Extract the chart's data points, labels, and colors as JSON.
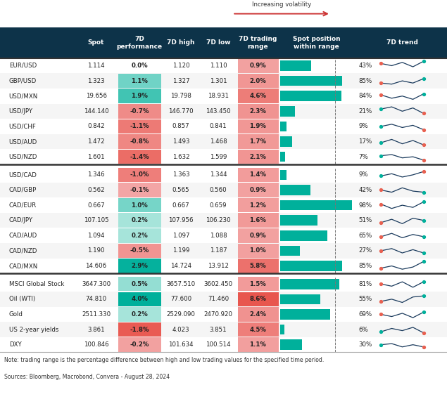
{
  "header_bg": "#0d3349",
  "rows": [
    [
      "EUR/USD",
      "1.114",
      "0.0%",
      "1.120",
      "1.110",
      "0.9%",
      43,
      [
        0.7,
        0.5,
        0.8,
        0.4,
        0.9
      ],
      "orange",
      "teal"
    ],
    [
      "GBP/USD",
      "1.323",
      "1.1%",
      "1.327",
      "1.301",
      "2.0%",
      85,
      [
        0.3,
        0.2,
        0.5,
        0.3,
        0.7
      ],
      "orange",
      "teal"
    ],
    [
      "USD/MXN",
      "19.656",
      "1.9%",
      "19.798",
      "18.931",
      "4.6%",
      84,
      [
        0.6,
        0.3,
        0.5,
        0.2,
        0.7
      ],
      "orange",
      "teal"
    ],
    [
      "USD/JPY",
      "144.140",
      "-0.7%",
      "146.770",
      "143.450",
      "2.3%",
      21,
      [
        0.7,
        0.9,
        0.5,
        0.8,
        0.3
      ],
      "teal",
      "orange"
    ],
    [
      "USD/CHF",
      "0.842",
      "-1.1%",
      "0.857",
      "0.841",
      "1.9%",
      9,
      [
        0.5,
        0.7,
        0.4,
        0.6,
        0.2
      ],
      "teal",
      "orange"
    ],
    [
      "USD/AUD",
      "1.472",
      "-0.8%",
      "1.493",
      "1.468",
      "1.7%",
      17,
      [
        0.4,
        0.7,
        0.3,
        0.6,
        0.2
      ],
      "teal",
      "orange"
    ],
    [
      "USD/NZD",
      "1.601",
      "-1.4%",
      "1.632",
      "1.599",
      "2.1%",
      7,
      [
        0.6,
        0.7,
        0.4,
        0.5,
        0.2
      ],
      "teal",
      "orange"
    ]
  ],
  "rows2": [
    [
      "USD/CAD",
      "1.346",
      "-1.0%",
      "1.363",
      "1.344",
      "1.4%",
      9,
      [
        0.4,
        0.6,
        0.3,
        0.5,
        0.8
      ],
      "teal",
      "orange"
    ],
    [
      "CAD/GBP",
      "0.562",
      "-0.1%",
      "0.565",
      "0.560",
      "0.9%",
      42,
      [
        0.5,
        0.3,
        0.7,
        0.4,
        0.3
      ],
      "orange",
      "teal"
    ],
    [
      "CAD/EUR",
      "0.667",
      "1.0%",
      "0.667",
      "0.659",
      "1.2%",
      98,
      [
        0.6,
        0.2,
        0.5,
        0.3,
        0.8
      ],
      "orange",
      "teal"
    ],
    [
      "CAD/JPY",
      "107.105",
      "0.2%",
      "107.956",
      "106.230",
      "1.6%",
      51,
      [
        0.3,
        0.6,
        0.2,
        0.7,
        0.5
      ],
      "orange",
      "teal"
    ],
    [
      "CAD/AUD",
      "1.094",
      "0.2%",
      "1.097",
      "1.088",
      "0.9%",
      65,
      [
        0.4,
        0.7,
        0.3,
        0.6,
        0.4
      ],
      "orange",
      "teal"
    ],
    [
      "CAD/NZD",
      "1.190",
      "-0.5%",
      "1.199",
      "1.187",
      "1.0%",
      27,
      [
        0.5,
        0.7,
        0.3,
        0.6,
        0.3
      ],
      "orange",
      "teal"
    ],
    [
      "CAD/MXN",
      "14.606",
      "2.9%",
      "14.724",
      "13.912",
      "5.8%",
      85,
      [
        0.3,
        0.5,
        0.2,
        0.4,
        0.9
      ],
      "orange",
      "teal"
    ]
  ],
  "rows3": [
    [
      "MSCI Global Stock",
      "3647.300",
      "0.5%",
      "3657.510",
      "3602.450",
      "1.5%",
      81,
      [
        0.5,
        0.3,
        0.7,
        0.2,
        0.7
      ],
      "orange",
      "teal"
    ],
    [
      "Oil (WTI)",
      "74.810",
      "4.0%",
      "77.600",
      "71.460",
      "8.6%",
      55,
      [
        0.3,
        0.5,
        0.2,
        0.7,
        0.8
      ],
      "orange",
      "teal"
    ],
    [
      "Gold",
      "2511.330",
      "0.2%",
      "2529.090",
      "2470.920",
      "2.4%",
      69,
      [
        0.5,
        0.3,
        0.6,
        0.2,
        0.7
      ],
      "orange",
      "teal"
    ],
    [
      "US 2-year yields",
      "3.861",
      "-1.8%",
      "4.023",
      "3.851",
      "4.5%",
      6,
      [
        0.3,
        0.6,
        0.4,
        0.7,
        0.2
      ],
      "teal",
      "orange"
    ],
    [
      "DXY",
      "100.846",
      "-0.2%",
      "101.634",
      "100.514",
      "1.1%",
      30,
      [
        0.5,
        0.6,
        0.3,
        0.5,
        0.3
      ],
      "teal",
      "orange"
    ]
  ],
  "note": "Note: trading range is the percentage difference between high and low trading values for the specified time period.",
  "sources": "Sources: Bloomberg, Macrobond, Convera - August 28, 2024",
  "volatility_label": "Increasing volatility",
  "teal_color": "#00b09b",
  "navy_line": "#1a3a5c",
  "orange_dot": "#e86050",
  "teal_dot": "#00b09b"
}
